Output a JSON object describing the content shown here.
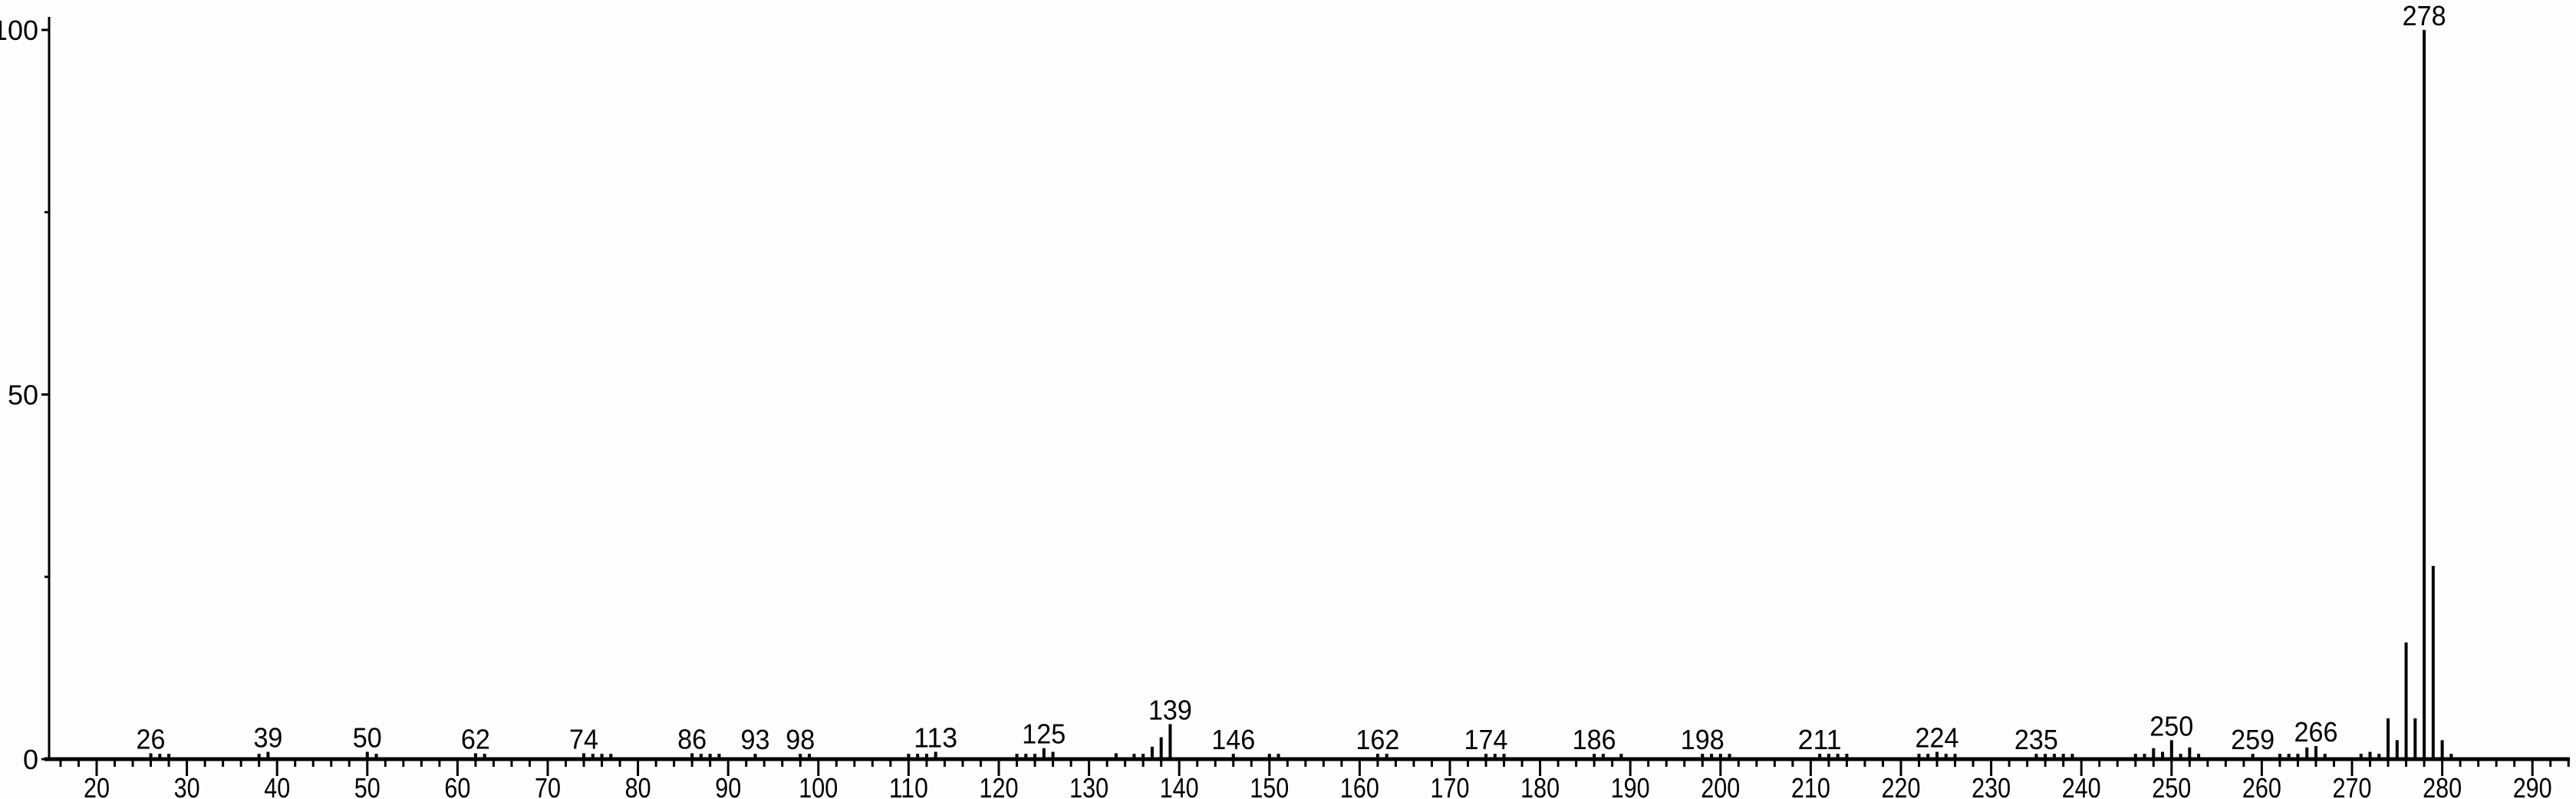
{
  "chart_data": {
    "type": "bar",
    "title": "",
    "xlabel": "",
    "ylabel": "",
    "xlim": [
      15,
      295
    ],
    "ylim": [
      0,
      100
    ],
    "x_ticks": [
      20,
      30,
      40,
      50,
      60,
      70,
      80,
      90,
      100,
      110,
      120,
      130,
      140,
      150,
      160,
      170,
      180,
      190,
      200,
      210,
      220,
      230,
      240,
      250,
      260,
      270,
      280,
      290
    ],
    "y_ticks": [
      0,
      50,
      100
    ],
    "y_minor_ticks": [
      25,
      75
    ],
    "grid": false,
    "bar_color": "#000000",
    "peaks": [
      {
        "x": 26,
        "y": 0.8
      },
      {
        "x": 27,
        "y": 0.5
      },
      {
        "x": 28,
        "y": 0.5
      },
      {
        "x": 38,
        "y": 0.5
      },
      {
        "x": 39,
        "y": 1.0
      },
      {
        "x": 50,
        "y": 1.0
      },
      {
        "x": 51,
        "y": 0.5
      },
      {
        "x": 62,
        "y": 0.8
      },
      {
        "x": 63,
        "y": 0.5
      },
      {
        "x": 74,
        "y": 0.8
      },
      {
        "x": 75,
        "y": 0.5
      },
      {
        "x": 76,
        "y": 0.5
      },
      {
        "x": 77,
        "y": 0.5
      },
      {
        "x": 86,
        "y": 0.8
      },
      {
        "x": 87,
        "y": 0.5
      },
      {
        "x": 88,
        "y": 0.5
      },
      {
        "x": 89,
        "y": 0.5
      },
      {
        "x": 93,
        "y": 0.5
      },
      {
        "x": 98,
        "y": 0.5
      },
      {
        "x": 99,
        "y": 0.5
      },
      {
        "x": 110,
        "y": 0.5
      },
      {
        "x": 111,
        "y": 0.5
      },
      {
        "x": 112,
        "y": 0.5
      },
      {
        "x": 113,
        "y": 1.0
      },
      {
        "x": 122,
        "y": 0.6
      },
      {
        "x": 123,
        "y": 0.6
      },
      {
        "x": 124,
        "y": 0.5
      },
      {
        "x": 125,
        "y": 1.5
      },
      {
        "x": 126,
        "y": 1.0
      },
      {
        "x": 133,
        "y": 0.8
      },
      {
        "x": 135,
        "y": 0.5
      },
      {
        "x": 136,
        "y": 0.6
      },
      {
        "x": 137,
        "y": 1.7
      },
      {
        "x": 138,
        "y": 3.0
      },
      {
        "x": 139,
        "y": 4.8
      },
      {
        "x": 146,
        "y": 0.5
      },
      {
        "x": 150,
        "y": 0.6
      },
      {
        "x": 151,
        "y": 0.5
      },
      {
        "x": 162,
        "y": 0.6
      },
      {
        "x": 163,
        "y": 0.5
      },
      {
        "x": 174,
        "y": 0.6
      },
      {
        "x": 175,
        "y": 0.5
      },
      {
        "x": 176,
        "y": 0.6
      },
      {
        "x": 186,
        "y": 0.6
      },
      {
        "x": 187,
        "y": 0.5
      },
      {
        "x": 189,
        "y": 0.5
      },
      {
        "x": 198,
        "y": 0.6
      },
      {
        "x": 199,
        "y": 0.5
      },
      {
        "x": 200,
        "y": 0.5
      },
      {
        "x": 201,
        "y": 0.5
      },
      {
        "x": 211,
        "y": 0.5
      },
      {
        "x": 212,
        "y": 0.5
      },
      {
        "x": 213,
        "y": 0.5
      },
      {
        "x": 214,
        "y": 0.5
      },
      {
        "x": 222,
        "y": 0.6
      },
      {
        "x": 223,
        "y": 0.5
      },
      {
        "x": 224,
        "y": 1.0
      },
      {
        "x": 225,
        "y": 0.5
      },
      {
        "x": 226,
        "y": 0.6
      },
      {
        "x": 235,
        "y": 0.5
      },
      {
        "x": 236,
        "y": 0.6
      },
      {
        "x": 237,
        "y": 0.5
      },
      {
        "x": 238,
        "y": 0.5
      },
      {
        "x": 239,
        "y": 0.6
      },
      {
        "x": 246,
        "y": 0.5
      },
      {
        "x": 247,
        "y": 0.6
      },
      {
        "x": 248,
        "y": 1.5
      },
      {
        "x": 249,
        "y": 1.0
      },
      {
        "x": 250,
        "y": 2.6
      },
      {
        "x": 251,
        "y": 0.6
      },
      {
        "x": 252,
        "y": 1.6
      },
      {
        "x": 253,
        "y": 0.5
      },
      {
        "x": 259,
        "y": 0.5
      },
      {
        "x": 262,
        "y": 0.6
      },
      {
        "x": 263,
        "y": 0.5
      },
      {
        "x": 264,
        "y": 0.6
      },
      {
        "x": 265,
        "y": 1.6
      },
      {
        "x": 266,
        "y": 1.8
      },
      {
        "x": 267,
        "y": 0.5
      },
      {
        "x": 271,
        "y": 0.5
      },
      {
        "x": 272,
        "y": 1.0
      },
      {
        "x": 273,
        "y": 0.5
      },
      {
        "x": 274,
        "y": 5.6
      },
      {
        "x": 275,
        "y": 2.6
      },
      {
        "x": 276,
        "y": 16.0
      },
      {
        "x": 277,
        "y": 5.6
      },
      {
        "x": 278,
        "y": 100
      },
      {
        "x": 279,
        "y": 26.5
      },
      {
        "x": 280,
        "y": 2.6
      },
      {
        "x": 281,
        "y": 0.5
      }
    ],
    "annotations": [
      {
        "x": 26,
        "label": "26"
      },
      {
        "x": 39,
        "label": "39"
      },
      {
        "x": 50,
        "label": "50"
      },
      {
        "x": 62,
        "label": "62"
      },
      {
        "x": 74,
        "label": "74"
      },
      {
        "x": 86,
        "label": "86"
      },
      {
        "x": 93,
        "label": "93"
      },
      {
        "x": 98,
        "label": "98"
      },
      {
        "x": 113,
        "label": "113"
      },
      {
        "x": 125,
        "label": "125"
      },
      {
        "x": 139,
        "label": "139"
      },
      {
        "x": 146,
        "label": "146"
      },
      {
        "x": 162,
        "label": "162"
      },
      {
        "x": 174,
        "label": "174"
      },
      {
        "x": 186,
        "label": "186"
      },
      {
        "x": 198,
        "label": "198"
      },
      {
        "x": 211,
        "label": "211"
      },
      {
        "x": 224,
        "label": "224"
      },
      {
        "x": 235,
        "label": "235"
      },
      {
        "x": 250,
        "label": "250"
      },
      {
        "x": 259,
        "label": "259"
      },
      {
        "x": 266,
        "label": "266"
      },
      {
        "x": 278,
        "label": "278"
      }
    ]
  }
}
